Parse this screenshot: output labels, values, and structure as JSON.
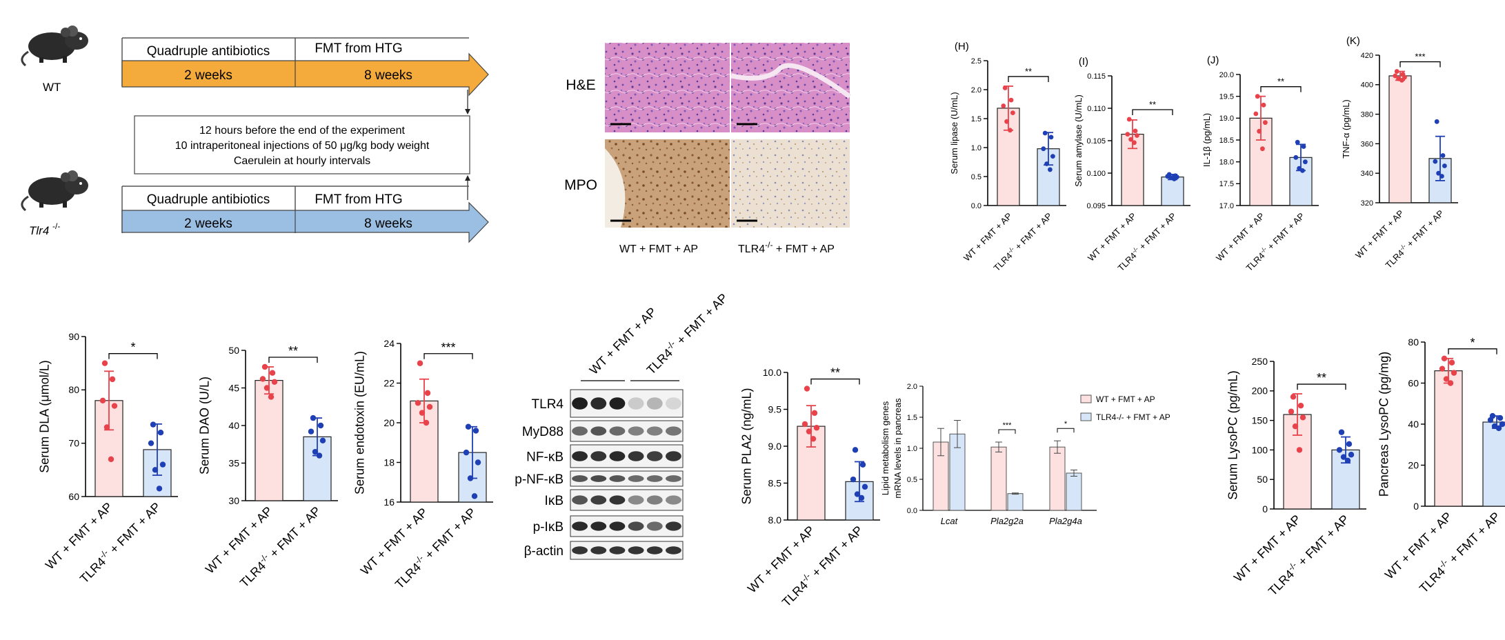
{
  "schematic": {
    "wt_label": "WT",
    "ko_label_base": "Tlr4",
    "ko_label_sup": "-/-",
    "phase1": "Quadruple antibiotics",
    "phase2": "FMT from HTG",
    "dur1": "2 weeks",
    "dur2": "8 weeks",
    "note": [
      "12 hours before the end of the experiment",
      "10 intraperitoneal injections of 50 μg/kg body weight",
      "Caerulein at hourly intervals"
    ],
    "colors": {
      "wt": "#f5ab3c",
      "ko": "#9bbfe3"
    }
  },
  "histology": {
    "rows": [
      "H&E",
      "MPO"
    ],
    "cols": [
      "WT + FMT + AP",
      "TLR4 -/- + FMT + AP"
    ]
  },
  "groups": {
    "wt": "WT + FMT + AP",
    "ko_base": "TLR4",
    "ko_sup": "-/-",
    "ko_rest": "+ FMT + AP"
  },
  "colors": {
    "wt_bar": "#fde0e0",
    "wt_dot": "#e8424b",
    "ko_bar": "#d6e6f8",
    "ko_dot": "#1f3fb5"
  },
  "chart_data": [
    {
      "id": "H",
      "type": "bar",
      "panel": "(H)",
      "ylabel": "Serum lipase (U/mL)",
      "ylim": [
        0,
        2.5
      ],
      "ticks": [
        "0.0",
        "0.5",
        "1.0",
        "1.5",
        "2.0",
        "2.5"
      ],
      "tick_values": [
        0,
        0.5,
        1.0,
        1.5,
        2.0,
        2.5
      ],
      "categories": [
        "WT + FMT + AP",
        "TLR4 -/- + FMT + AP"
      ],
      "values": [
        1.68,
        0.98
      ],
      "errors": [
        0.38,
        0.28
      ],
      "points": [
        [
          2.03,
          1.82,
          1.72,
          1.6,
          1.45,
          1.3
        ],
        [
          1.25,
          1.18,
          0.98,
          0.85,
          0.72,
          0.62
        ]
      ],
      "sig": "**"
    },
    {
      "id": "I",
      "type": "bar",
      "panel": "(I)",
      "ylabel": "Serum amylase (U/mL)",
      "ylim": [
        0.095,
        0.115
      ],
      "ticks": [
        "0.095",
        "0.100",
        "0.105",
        "0.110",
        "0.115"
      ],
      "tick_values": [
        0.095,
        0.1,
        0.105,
        0.11,
        0.115
      ],
      "categories": [
        "WT + FMT + AP",
        "TLR4 -/- + FMT + AP"
      ],
      "values": [
        0.106,
        0.0994
      ],
      "errors": [
        0.0022,
        0.0004
      ],
      "points": [
        [
          0.1083,
          0.1065,
          0.106,
          0.1058,
          0.1052,
          0.1047
        ],
        [
          0.0998,
          0.0996,
          0.0995,
          0.0994,
          0.0993,
          0.0991
        ]
      ],
      "sig": "**"
    },
    {
      "id": "J",
      "type": "bar",
      "panel": "(J)",
      "ylabel": "IL-1β (pg/mL)",
      "ylim": [
        17.0,
        20.0
      ],
      "ticks": [
        "17.0",
        "17.5",
        "18.0",
        "18.5",
        "19.0",
        "19.5",
        "20.0"
      ],
      "tick_values": [
        17.0,
        17.5,
        18.0,
        18.5,
        19.0,
        19.5,
        20.0
      ],
      "categories": [
        "WT + FMT + AP",
        "TLR4 -/- + FMT + AP"
      ],
      "values": [
        19.0,
        18.1
      ],
      "errors": [
        0.5,
        0.3
      ],
      "points": [
        [
          19.5,
          19.3,
          19.1,
          18.9,
          18.7,
          18.3
        ],
        [
          18.45,
          18.35,
          18.1,
          18.0,
          17.85,
          17.8
        ]
      ],
      "sig": "**"
    },
    {
      "id": "K",
      "type": "bar",
      "panel": "(K)",
      "ylabel": "TNF-α (pg/mL)",
      "ylim": [
        320,
        420
      ],
      "ticks": [
        "320",
        "340",
        "360",
        "380",
        "400",
        "420"
      ],
      "tick_values": [
        320,
        340,
        360,
        380,
        400,
        420
      ],
      "categories": [
        "WT + FMT + AP",
        "TLR4 -/- + FMT + AP"
      ],
      "values": [
        406,
        350
      ],
      "errors": [
        3,
        15
      ],
      "points": [
        [
          409,
          407,
          406,
          405,
          404,
          403
        ],
        [
          375,
          352,
          348,
          345,
          340,
          338
        ]
      ],
      "sig": "***"
    },
    {
      "id": "DLA",
      "type": "bar",
      "panel": "",
      "ylabel": "Serum DLA (μmol/L)",
      "ylim": [
        60,
        90
      ],
      "ticks": [
        "60",
        "70",
        "80",
        "90"
      ],
      "tick_values": [
        60,
        70,
        80,
        90
      ],
      "categories": [
        "WT + FMT + AP",
        "TLR4 -/- + FMT + AP"
      ],
      "values": [
        78,
        68.8
      ],
      "errors": [
        5.5,
        4.8
      ],
      "points": [
        [
          85,
          82,
          78,
          77,
          73,
          67
        ],
        [
          73.5,
          72,
          70,
          66,
          65,
          61.5
        ]
      ],
      "sig": "*"
    },
    {
      "id": "DAO",
      "type": "bar",
      "panel": "",
      "ylabel": "Serum DAO (U/L)",
      "ylim": [
        30,
        50
      ],
      "ticks": [
        "30",
        "35",
        "40",
        "45",
        "50"
      ],
      "tick_values": [
        30,
        35,
        40,
        45,
        50
      ],
      "categories": [
        "WT + FMT + AP",
        "TLR4 -/- + FMT + AP"
      ],
      "values": [
        46,
        38.5
      ],
      "errors": [
        1.8,
        2.5
      ],
      "points": [
        [
          47.8,
          47,
          46.2,
          45.8,
          45,
          43.8
        ],
        [
          41,
          40,
          39.2,
          38,
          36.5,
          36
        ]
      ],
      "sig": "**"
    },
    {
      "id": "ENDO",
      "type": "bar",
      "panel": "",
      "ylabel": "Serum endotoxin (EU/mL)",
      "ylim": [
        16,
        24
      ],
      "ticks": [
        "16",
        "18",
        "20",
        "22",
        "24"
      ],
      "tick_values": [
        16,
        18,
        20,
        22,
        24
      ],
      "categories": [
        "WT + FMT + AP",
        "TLR4 -/- + FMT + AP"
      ],
      "values": [
        21.1,
        18.5
      ],
      "errors": [
        1.1,
        1.3
      ],
      "points": [
        [
          23,
          21.5,
          21,
          20.8,
          20.5,
          20
        ],
        [
          19.8,
          19.6,
          18.5,
          18,
          17.2,
          16.3
        ]
      ],
      "sig": "***"
    },
    {
      "id": "PLA2",
      "type": "bar",
      "panel": "",
      "ylabel": "Serum PLA2 (ng/mL)",
      "ylim": [
        8.0,
        10.0
      ],
      "ticks": [
        "8.0",
        "8.5",
        "9.0",
        "9.5",
        "10.0"
      ],
      "tick_values": [
        8.0,
        8.5,
        9.0,
        9.5,
        10.0
      ],
      "categories": [
        "WT + FMT + AP",
        "TLR4 -/- + FMT + AP"
      ],
      "values": [
        9.27,
        8.52
      ],
      "errors": [
        0.28,
        0.27
      ],
      "points": [
        [
          9.78,
          9.45,
          9.3,
          9.25,
          9.2,
          9.1
        ],
        [
          8.95,
          8.75,
          8.55,
          8.45,
          8.35,
          8.3
        ]
      ],
      "sig": "**"
    },
    {
      "id": "LPCS",
      "type": "bar",
      "panel": "",
      "ylabel": "Serum LysoPC (pg/mL)",
      "ylim": [
        0,
        250
      ],
      "ticks": [
        "0",
        "50",
        "100",
        "150",
        "200",
        "250"
      ],
      "tick_values": [
        0,
        50,
        100,
        150,
        200,
        250
      ],
      "categories": [
        "WT + FMT + AP",
        "TLR4 -/- + FMT + AP"
      ],
      "values": [
        160,
        100
      ],
      "errors": [
        35,
        22
      ],
      "points": [
        [
          190,
          175,
          165,
          155,
          140,
          100
        ],
        [
          130,
          110,
          100,
          92,
          88,
          82
        ]
      ],
      "sig": "**"
    },
    {
      "id": "LPCP",
      "type": "bar",
      "panel": "",
      "ylabel": "Pancreas LysoPC (pg/mg)",
      "ylim": [
        0,
        80
      ],
      "ticks": [
        "0",
        "20",
        "40",
        "60",
        "80"
      ],
      "tick_values": [
        0,
        20,
        40,
        60,
        80
      ],
      "categories": [
        "WT + FMT + AP",
        "TLR4 -/- + FMT + AP"
      ],
      "values": [
        66,
        41
      ],
      "errors": [
        6,
        3
      ],
      "points": [
        [
          72,
          70,
          67,
          65,
          62,
          60
        ],
        [
          44,
          43,
          42,
          40,
          39,
          38
        ]
      ],
      "sig": "*"
    },
    {
      "id": "LIPID",
      "type": "grouped-bar",
      "ylabel_lines": [
        "Lipid metabolism genes",
        "mRNA levels in pancreas"
      ],
      "ylim": [
        0,
        2.0
      ],
      "ticks": [
        "0.0",
        "0.5",
        "1.0",
        "1.5",
        "2.0"
      ],
      "tick_values": [
        0,
        0.5,
        1.0,
        1.5,
        2.0
      ],
      "categories": [
        "Lcat",
        "Pla2g2a",
        "Pla2g4a"
      ],
      "series": [
        {
          "name": "WT + FMT + AP",
          "values": [
            1.1,
            1.02,
            1.02
          ],
          "errors": [
            0.22,
            0.08,
            0.1
          ]
        },
        {
          "name": "TLR4 -/- + FMT + AP",
          "values": [
            1.23,
            0.27,
            0.6
          ],
          "errors": [
            0.22,
            0.01,
            0.05
          ]
        }
      ],
      "sig": [
        "",
        "***",
        "*"
      ],
      "legend": [
        "WT + FMT + AP",
        "TLR4-/- + FMT + AP"
      ]
    }
  ],
  "western": {
    "bands": [
      "TLR4",
      "MyD88",
      "NF-κB",
      "p-NF-κB",
      "IκB",
      "p-IκB",
      "β-actin"
    ],
    "group_wt": "WT + FMT + AP",
    "group_ko": "TLR4 -/- + FMT + AP",
    "intensity": [
      [
        0.95,
        0.9,
        0.95,
        0.15,
        0.25,
        0.1
      ],
      [
        0.6,
        0.7,
        0.6,
        0.5,
        0.5,
        0.55
      ],
      [
        0.9,
        0.85,
        0.9,
        0.85,
        0.8,
        0.85
      ],
      [
        0.7,
        0.75,
        0.7,
        0.6,
        0.6,
        0.6
      ],
      [
        0.7,
        0.8,
        0.85,
        0.45,
        0.5,
        0.45
      ],
      [
        0.9,
        0.9,
        0.9,
        0.75,
        0.6,
        0.85
      ],
      [
        0.85,
        0.85,
        0.85,
        0.85,
        0.85,
        0.85
      ]
    ]
  }
}
